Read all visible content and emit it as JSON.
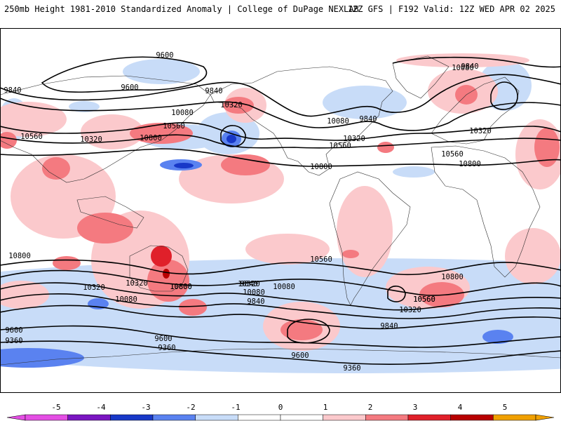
{
  "header": {
    "left": "250mb Height 1981-2010 Standardized Anomaly | College of DuPage NEXLAB",
    "right": "12Z GFS | F192 Valid: 12Z WED APR 02 2025"
  },
  "colors": {
    "neg5": "#e44ee4",
    "neg4": "#7b16c2",
    "neg3": "#1838c8",
    "neg2": "#5a82f0",
    "neg1": "#c8dcf8",
    "zero": "#ffffff",
    "pos1": "#fbc9cc",
    "pos2": "#f47a80",
    "pos3": "#e0202a",
    "pos4": "#b80000",
    "pos5": "#f0a000",
    "contour": "#000000",
    "coast": "#303030"
  },
  "legend": {
    "labels": [
      "-5",
      "-4",
      "-3",
      "-2",
      "-1",
      "0",
      "1",
      "2",
      "3",
      "4",
      "5"
    ]
  },
  "contour_labels": [
    "9600",
    "9840",
    "9600",
    "9840",
    "10080",
    "10320",
    "10560",
    "10560",
    "10800",
    "10320",
    "9840",
    "10080",
    "9840",
    "10080",
    "10320",
    "10560",
    "10320",
    "10560",
    "10800",
    "10800",
    "10800",
    "10560",
    "10800",
    "10320",
    "9840",
    "10080",
    "10320",
    "10080",
    "9840",
    "10560",
    "10320",
    "10800",
    "10560",
    "10800",
    "10320",
    "10080",
    "9840",
    "9600",
    "9360",
    "9600",
    "9360",
    "9600",
    "9360"
  ]
}
